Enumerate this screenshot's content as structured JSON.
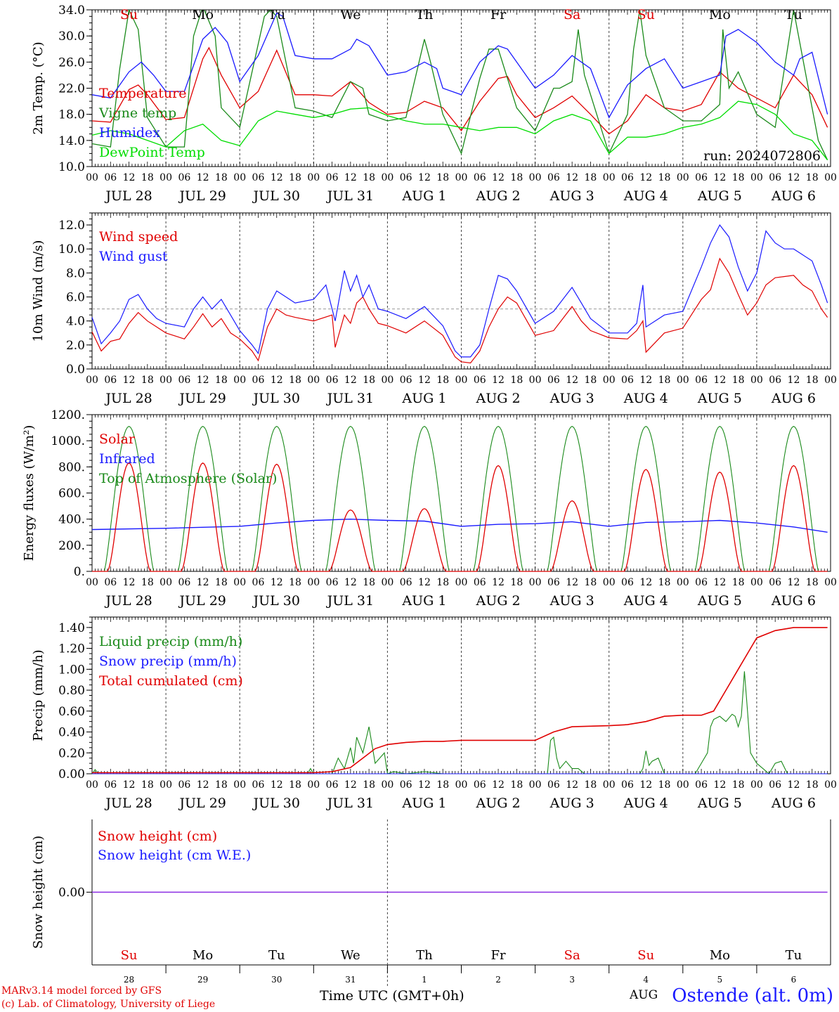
{
  "run_label": "run: 2024072806",
  "day_labels": [
    "JUL 28",
    "JUL 29",
    "JUL 30",
    "JUL 31",
    "AUG  1",
    "AUG  2",
    "AUG  3",
    "AUG  4",
    "AUG  5",
    "AUG  6"
  ],
  "hour_ticks": [
    "00",
    "06",
    "12",
    "18"
  ],
  "hour_end": "00",
  "weekdays": [
    {
      "label": "Su",
      "color": "#e00000"
    },
    {
      "label": "Mo",
      "color": "#000000"
    },
    {
      "label": "Tu",
      "color": "#000000"
    },
    {
      "label": "We",
      "color": "#000000"
    },
    {
      "label": "Th",
      "color": "#000000"
    },
    {
      "label": "Fr",
      "color": "#000000"
    },
    {
      "label": "Sa",
      "color": "#e00000"
    },
    {
      "label": "Su",
      "color": "#e00000"
    },
    {
      "label": "Mo",
      "color": "#000000"
    },
    {
      "label": "Tu",
      "color": "#000000"
    }
  ],
  "day_numbers": [
    "28",
    "29",
    "30",
    "31",
    "1",
    "2",
    "3",
    "4",
    "5",
    "6"
  ],
  "x_axis_title": "Time UTC (GMT+0h)",
  "x_axis_fragment": "AUG",
  "station": "Ostende (alt. 0m)",
  "credits": [
    "MARv3.14 model forced by GFS",
    "(c) Lab. of Climatology, University of Liege"
  ],
  "chart_data": [
    {
      "type": "line",
      "ylabel": "2m Temp. (°C)",
      "ylim": [
        10,
        34
      ],
      "yticks": [
        "10.0",
        "14.0",
        "18.0",
        "22.0",
        "26.0",
        "30.0",
        "34.0"
      ],
      "x_unit": "hours since JUL 28 00 UTC",
      "series": [
        {
          "name": "Temperature",
          "color": "#e00000",
          "x": [
            0,
            6,
            12,
            15,
            18,
            24,
            30,
            36,
            38,
            42,
            48,
            54,
            60,
            66,
            72,
            78,
            84,
            90,
            96,
            102,
            108,
            114,
            120,
            126,
            132,
            135,
            138,
            144,
            150,
            156,
            162,
            168,
            174,
            180,
            186,
            192,
            198,
            204,
            210,
            216,
            222,
            228,
            234,
            239
          ],
          "y": [
            17.0,
            16.8,
            21.8,
            22.5,
            21.0,
            17.2,
            17.5,
            26.5,
            28.2,
            24.0,
            19.0,
            21.5,
            27.8,
            21.0,
            21.0,
            20.8,
            23.0,
            19.8,
            18.0,
            18.3,
            20.0,
            19.0,
            15.5,
            20.0,
            23.5,
            23.8,
            21.0,
            17.5,
            19.0,
            20.8,
            18.0,
            15.0,
            17.0,
            21.0,
            19.0,
            18.5,
            19.5,
            24.5,
            22.0,
            20.5,
            19.0,
            24.0,
            21.0,
            16.0
          ]
        },
        {
          "name": "Vigne temp",
          "color": "#1a8a1a",
          "x": [
            0,
            6,
            9,
            12,
            15,
            18,
            24,
            30,
            33,
            36,
            40,
            42,
            48,
            56,
            58,
            60,
            66,
            72,
            78,
            84,
            88,
            90,
            96,
            102,
            108,
            110,
            114,
            120,
            126,
            129,
            132,
            138,
            144,
            150,
            152,
            156,
            158,
            160,
            168,
            174,
            176,
            178,
            180,
            186,
            192,
            198,
            204,
            205,
            207,
            210,
            216,
            222,
            228,
            234,
            236,
            239
          ],
          "y": [
            13.5,
            13.0,
            25.0,
            34.0,
            31.0,
            17.5,
            13.0,
            13.0,
            30.0,
            34.5,
            30.0,
            19.0,
            16.0,
            33.0,
            34.0,
            33.0,
            19.0,
            18.5,
            17.5,
            23.0,
            22.0,
            18.0,
            17.0,
            17.5,
            29.5,
            26.0,
            18.0,
            12.0,
            23.5,
            28.0,
            28.0,
            19.0,
            15.5,
            22.0,
            22.0,
            23.0,
            31.0,
            24.0,
            12.0,
            18.0,
            28.0,
            34.0,
            27.0,
            19.0,
            17.0,
            17.0,
            19.5,
            31.0,
            22.0,
            24.5,
            18.0,
            16.0,
            34.0,
            19.0,
            14.0,
            11.0
          ]
        },
        {
          "name": "Humidex",
          "color": "#1a1aff",
          "x": [
            0,
            6,
            12,
            16,
            20,
            24,
            30,
            36,
            40,
            44,
            48,
            54,
            60,
            62,
            66,
            72,
            78,
            84,
            86,
            90,
            96,
            102,
            108,
            112,
            114,
            120,
            126,
            132,
            135,
            138,
            144,
            150,
            156,
            162,
            168,
            171,
            174,
            180,
            186,
            192,
            198,
            204,
            206,
            210,
            216,
            222,
            228,
            230,
            234,
            239
          ],
          "y": [
            21.0,
            20.5,
            24.5,
            26.0,
            24.0,
            21.5,
            21.5,
            29.5,
            31.3,
            29.0,
            23.0,
            27.0,
            33.5,
            33.0,
            27.0,
            26.5,
            26.5,
            28.0,
            29.5,
            28.5,
            24.0,
            24.5,
            26.0,
            25.0,
            22.0,
            21.0,
            26.0,
            28.5,
            28.0,
            26.0,
            22.0,
            24.0,
            27.0,
            25.0,
            17.5,
            20.0,
            22.5,
            25.0,
            26.5,
            22.0,
            23.0,
            24.0,
            30.0,
            31.0,
            29.0,
            26.0,
            24.0,
            26.5,
            27.5,
            18.0
          ]
        },
        {
          "name": "DewPoint Temp",
          "color": "#00dd00",
          "x": [
            0,
            6,
            12,
            18,
            24,
            30,
            36,
            42,
            48,
            54,
            60,
            66,
            72,
            78,
            84,
            90,
            96,
            102,
            108,
            114,
            120,
            126,
            132,
            138,
            144,
            150,
            156,
            162,
            168,
            174,
            180,
            186,
            192,
            198,
            204,
            210,
            216,
            222,
            228,
            234,
            239
          ],
          "y": [
            14.8,
            15.5,
            15.0,
            14.0,
            13.0,
            15.5,
            16.5,
            14.0,
            13.2,
            17.0,
            18.5,
            18.0,
            17.5,
            18.0,
            18.8,
            19.0,
            17.8,
            17.0,
            16.5,
            16.5,
            16.0,
            15.5,
            16.0,
            16.0,
            15.0,
            17.0,
            18.0,
            17.0,
            12.0,
            14.5,
            14.5,
            15.0,
            16.0,
            16.5,
            17.5,
            20.0,
            19.5,
            18.0,
            15.0,
            14.0,
            11.0
          ]
        }
      ]
    },
    {
      "type": "line",
      "ylabel": "10m Wind (m/s)",
      "ylim": [
        0,
        13
      ],
      "yticks": [
        "0.0",
        "2.0",
        "4.0",
        "6.0",
        "8.0",
        "10.0",
        "12.0"
      ],
      "reference_line": 5.0,
      "series": [
        {
          "name": "Wind speed",
          "color": "#e00000",
          "x": [
            0,
            3,
            6,
            9,
            12,
            15,
            18,
            21,
            24,
            30,
            33,
            36,
            39,
            42,
            45,
            48,
            52,
            54,
            57,
            60,
            63,
            66,
            72,
            78,
            79,
            82,
            84,
            86,
            88,
            90,
            93,
            96,
            102,
            108,
            114,
            118,
            120,
            123,
            126,
            129,
            132,
            135,
            138,
            144,
            150,
            156,
            159,
            162,
            168,
            174,
            177,
            179,
            180,
            186,
            192,
            198,
            201,
            204,
            207,
            210,
            213,
            216,
            219,
            222,
            225,
            228,
            231,
            234,
            237,
            239
          ],
          "y": [
            3.1,
            1.5,
            2.3,
            2.5,
            3.8,
            4.7,
            4.0,
            3.5,
            3.0,
            2.5,
            3.5,
            4.6,
            3.5,
            4.2,
            3.0,
            2.5,
            1.5,
            0.7,
            3.5,
            5.0,
            4.5,
            4.3,
            4.0,
            4.5,
            1.8,
            4.5,
            3.8,
            5.5,
            6.0,
            5.0,
            3.8,
            3.6,
            3.0,
            4.0,
            2.8,
            1.0,
            0.6,
            0.5,
            1.5,
            3.5,
            5.0,
            6.0,
            5.5,
            2.8,
            3.2,
            5.2,
            4.0,
            3.2,
            2.6,
            2.5,
            3.2,
            4.0,
            1.4,
            3.0,
            3.4,
            5.8,
            6.6,
            9.2,
            8.0,
            6.2,
            4.5,
            5.5,
            7.0,
            7.6,
            7.7,
            7.8,
            7.0,
            6.5,
            5.0,
            4.3
          ]
        },
        {
          "name": "Wind gust",
          "color": "#1a1aff",
          "x": [
            0,
            3,
            6,
            9,
            12,
            15,
            18,
            21,
            24,
            30,
            33,
            36,
            39,
            42,
            45,
            48,
            52,
            54,
            57,
            60,
            63,
            66,
            72,
            76,
            79,
            82,
            84,
            86,
            88,
            90,
            93,
            96,
            102,
            108,
            114,
            118,
            120,
            123,
            126,
            129,
            132,
            135,
            138,
            144,
            150,
            156,
            159,
            162,
            168,
            174,
            177,
            179,
            180,
            186,
            192,
            198,
            201,
            204,
            207,
            210,
            213,
            216,
            219,
            222,
            225,
            228,
            231,
            234,
            237,
            239
          ],
          "y": [
            4.3,
            2.1,
            3.0,
            4.0,
            5.8,
            6.2,
            5.0,
            4.2,
            3.8,
            3.5,
            5.0,
            6.0,
            5.0,
            5.8,
            4.5,
            3.2,
            2.0,
            1.3,
            5.0,
            6.5,
            6.0,
            5.5,
            5.8,
            7.0,
            4.0,
            8.2,
            6.5,
            7.8,
            6.0,
            7.0,
            5.0,
            4.8,
            4.2,
            5.2,
            3.6,
            1.5,
            1.0,
            1.0,
            2.0,
            5.0,
            7.8,
            7.5,
            6.5,
            3.8,
            4.8,
            6.8,
            5.5,
            4.2,
            3.0,
            3.0,
            3.8,
            7.0,
            3.5,
            4.5,
            4.8,
            8.5,
            10.5,
            12.0,
            11.0,
            8.5,
            6.5,
            8.0,
            11.5,
            10.5,
            10.0,
            10.0,
            9.5,
            9.0,
            7.0,
            5.5
          ]
        }
      ]
    },
    {
      "type": "line",
      "ylabel": "Energy fluxes (W/m²)",
      "ylim": [
        0,
        1200
      ],
      "yticks": [
        "0.",
        "200.",
        "400.",
        "600.",
        "800.",
        "1000.",
        "1200."
      ],
      "series": [
        {
          "name": "Solar",
          "color": "#e00000"
        },
        {
          "name": "Infrared",
          "color": "#1a1aff",
          "x": [
            0,
            24,
            48,
            60,
            72,
            84,
            96,
            108,
            120,
            132,
            144,
            156,
            168,
            180,
            192,
            204,
            216,
            228,
            239
          ],
          "y": [
            320,
            330,
            345,
            370,
            390,
            400,
            390,
            385,
            345,
            360,
            365,
            380,
            345,
            375,
            380,
            390,
            370,
            340,
            300
          ]
        },
        {
          "name": "Top of Atmosphere (Solar)",
          "color": "#1a8a1a",
          "peak": 1110
        }
      ],
      "solar_daily_peaks": [
        830,
        830,
        820,
        470,
        480,
        810,
        540,
        780,
        760,
        810
      ]
    },
    {
      "type": "line",
      "ylabel": "Precip (mm/h)",
      "ylim": [
        0,
        1.5
      ],
      "yticks": [
        "0.00",
        "0.20",
        "0.40",
        "0.60",
        "0.80",
        "1.00",
        "1.20",
        "1.40"
      ],
      "series": [
        {
          "name": "Liquid precip (mm/h)",
          "color": "#1a8a1a",
          "x": [
            0,
            1,
            2,
            70,
            71,
            72,
            78,
            80,
            82,
            84,
            85,
            86,
            88,
            90,
            92,
            95,
            96,
            98,
            102,
            108,
            114,
            126,
            148,
            149,
            150,
            151,
            152,
            154,
            156,
            158,
            160,
            162,
            178,
            179,
            180,
            181,
            182,
            184,
            186,
            196,
            198,
            200,
            201,
            202,
            204,
            206,
            208,
            209,
            210,
            211,
            212,
            213,
            214,
            216,
            218,
            220,
            222,
            224,
            226,
            239
          ],
          "y": [
            0,
            0.04,
            0,
            0,
            0.05,
            0,
            0,
            0.15,
            0.05,
            0.25,
            0.1,
            0.35,
            0.2,
            0.45,
            0.1,
            0.2,
            0,
            0.02,
            0,
            0.02,
            0,
            0,
            0,
            0.32,
            0.35,
            0.15,
            0.05,
            0.12,
            0.05,
            0.05,
            0,
            0,
            0,
            0.05,
            0.22,
            0.08,
            0.12,
            0.15,
            0,
            0,
            0.1,
            0.2,
            0.45,
            0.52,
            0.55,
            0.5,
            0.57,
            0.55,
            0.45,
            0.55,
            0.98,
            0.6,
            0.2,
            0.1,
            0.05,
            0,
            0.1,
            0.12,
            0,
            0
          ]
        },
        {
          "name": "Snow precip (mm/h)",
          "color": "#1a1aff",
          "x": [
            0,
            239
          ],
          "y": [
            0,
            0
          ]
        },
        {
          "name": "Total cumulated (cm)",
          "color": "#e00000",
          "x": [
            0,
            72,
            78,
            84,
            88,
            92,
            96,
            102,
            108,
            114,
            120,
            130,
            144,
            150,
            156,
            168,
            174,
            180,
            186,
            192,
            198,
            202,
            206,
            210,
            214,
            216,
            222,
            228,
            239
          ],
          "y": [
            0.01,
            0.01,
            0.02,
            0.06,
            0.15,
            0.24,
            0.28,
            0.3,
            0.31,
            0.31,
            0.32,
            0.32,
            0.32,
            0.4,
            0.45,
            0.46,
            0.47,
            0.5,
            0.55,
            0.56,
            0.56,
            0.6,
            0.8,
            1.0,
            1.2,
            1.3,
            1.37,
            1.4,
            1.4
          ]
        }
      ]
    },
    {
      "type": "line",
      "ylabel": "Snow height (cm)",
      "ylim": [
        -1,
        1
      ],
      "yticks": [
        "0.00"
      ],
      "series": [
        {
          "name": "Snow height (cm)",
          "color": "#e00000",
          "x": [
            0,
            239
          ],
          "y": [
            0,
            0
          ]
        },
        {
          "name": "Snow height (cm W.E.)",
          "color": "#1a1aff",
          "x": [
            0,
            239
          ],
          "y": [
            0,
            0
          ]
        }
      ]
    }
  ]
}
